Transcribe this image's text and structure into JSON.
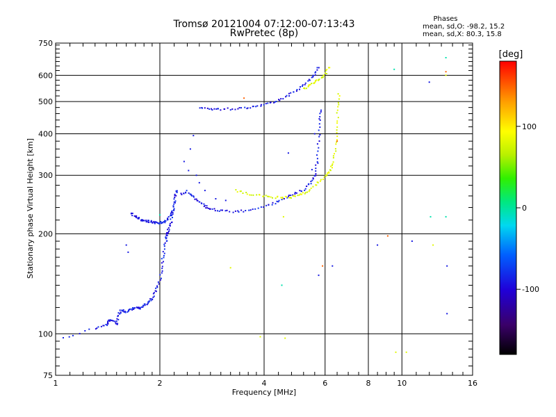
{
  "chart_data": {
    "type": "scatter",
    "title": "Tromsø 20121004 07:12:00-07:13:43",
    "subtitle": "RwPretec (8p)",
    "xlabel": "Frequency [MHz]",
    "ylabel": "Stationary phase Virtual Height [km]",
    "x_scale": "log",
    "y_scale": "log",
    "xlim": [
      1,
      16
    ],
    "ylim": [
      75,
      750
    ],
    "x_ticks": [
      1,
      2,
      4,
      6,
      8,
      10,
      16
    ],
    "x_tick_labels": [
      "1",
      "2",
      "4",
      "6",
      "8",
      "10",
      "16"
    ],
    "y_ticks": [
      75,
      100,
      200,
      300,
      400,
      500,
      600,
      750
    ],
    "y_tick_labels": [
      "75",
      "100",
      "200",
      "300",
      "400",
      "500",
      "600",
      "750"
    ],
    "x_major_gridlines": [
      2,
      4,
      6,
      8,
      10
    ],
    "y_major_gridlines": [
      100,
      200,
      300,
      400,
      500,
      600
    ],
    "x_minor_ticks": [
      1.1,
      1.2,
      1.3,
      1.4,
      1.5,
      1.6,
      1.7,
      1.8,
      1.9,
      2.2,
      2.4,
      2.6,
      2.8,
      3,
      3.2,
      3.4,
      3.6,
      3.8,
      4.4,
      4.8,
      5.2,
      5.6,
      6.5,
      7,
      7.5,
      8.5,
      9,
      9.5,
      11,
      12,
      13,
      14,
      15
    ],
    "y_minor_ticks": [
      80,
      85,
      90,
      95,
      110,
      120,
      130,
      140,
      150,
      160,
      170,
      180,
      190,
      220,
      240,
      260,
      280,
      320,
      340,
      360,
      380,
      420,
      440,
      460,
      480,
      520,
      540,
      560,
      580,
      620,
      640,
      660,
      680,
      700,
      720,
      740
    ],
    "stats": {
      "title": "Phases",
      "line1": "mean, sd,O:  -98.2, 15.2",
      "line2": "mean, sd,X:  80.3, 15.8"
    },
    "colorbar": {
      "label": "[deg]",
      "range": [
        -180,
        180
      ],
      "ticks": [
        100,
        0,
        -100
      ],
      "tick_labels": [
        "100",
        "0",
        "-100"
      ]
    },
    "series": [
      {
        "mode": "O",
        "phase_deg": -98,
        "traces": [
          [
            [
              1.05,
              97
            ],
            [
              1.3,
              104
            ],
            [
              1.4,
              106
            ],
            [
              1.42,
              109
            ],
            [
              1.45,
              110
            ],
            [
              1.5,
              107
            ],
            [
              1.52,
              114
            ],
            [
              1.55,
              118
            ],
            [
              1.6,
              116
            ],
            [
              1.65,
              118
            ],
            [
              1.7,
              120
            ],
            [
              1.75,
              119
            ],
            [
              1.8,
              122
            ],
            [
              1.85,
              124
            ],
            [
              1.9,
              128
            ],
            [
              1.95,
              135
            ],
            [
              2,
              145
            ],
            [
              2.03,
              160
            ],
            [
              2.05,
              175
            ],
            [
              2.08,
              190
            ],
            [
              2.1,
              198
            ],
            [
              2.12,
              205
            ],
            [
              2.15,
              215
            ],
            [
              2.18,
              232
            ],
            [
              2.2,
              248
            ],
            [
              2.22,
              262
            ],
            [
              2.25,
              272
            ]
          ],
          [
            [
              1.65,
              232
            ],
            [
              1.7,
              225
            ],
            [
              1.75,
              221
            ],
            [
              1.8,
              219
            ],
            [
              1.85,
              218
            ],
            [
              1.9,
              217
            ],
            [
              1.95,
              216
            ],
            [
              2,
              216
            ],
            [
              2.05,
              217
            ],
            [
              2.1,
              220
            ],
            [
              2.15,
              228
            ],
            [
              2.2,
              240
            ]
          ],
          [
            [
              2.3,
              262
            ],
            [
              2.4,
              268
            ],
            [
              2.5,
              258
            ],
            [
              2.6,
              250
            ],
            [
              2.7,
              242
            ],
            [
              2.8,
              238
            ],
            [
              3,
              234
            ],
            [
              3.3,
              233
            ],
            [
              3.6,
              235
            ],
            [
              4,
              241
            ],
            [
              4.3,
              248
            ],
            [
              4.6,
              256
            ],
            [
              4.9,
              264
            ],
            [
              5.2,
              272
            ],
            [
              5.45,
              285
            ],
            [
              5.6,
              300
            ],
            [
              5.7,
              330
            ],
            [
              5.75,
              380
            ],
            [
              5.8,
              440
            ],
            [
              5.85,
              480
            ]
          ],
          [
            [
              2.6,
              478
            ],
            [
              2.8,
              475
            ],
            [
              3,
              474
            ],
            [
              3.3,
              476
            ],
            [
              3.6,
              480
            ],
            [
              3.9,
              487
            ],
            [
              4.2,
              497
            ],
            [
              4.5,
              510
            ],
            [
              4.8,
              528
            ],
            [
              5.1,
              550
            ],
            [
              5.4,
              578
            ],
            [
              5.6,
              605
            ],
            [
              5.75,
              640
            ]
          ]
        ],
        "scattered": [
          [
            1.6,
            185
          ],
          [
            1.62,
            176
          ],
          [
            2.35,
            330
          ],
          [
            2.45,
            360
          ],
          [
            2.5,
            395
          ],
          [
            2.42,
            310
          ],
          [
            2.55,
            300
          ],
          [
            2.6,
            285
          ],
          [
            2.7,
            270
          ],
          [
            2.9,
            255
          ],
          [
            3.1,
            252
          ],
          [
            4.7,
            350
          ],
          [
            5.5,
            312
          ],
          [
            5.6,
            400
          ],
          [
            6.3,
            160
          ],
          [
            5.75,
            150
          ],
          [
            8.5,
            185
          ],
          [
            10.7,
            190
          ],
          [
            13.5,
            160
          ],
          [
            13.5,
            115
          ],
          [
            12,
            572
          ]
        ]
      },
      {
        "mode": "X",
        "phase_deg": 80,
        "traces": [
          [
            [
              3.3,
              270
            ],
            [
              3.6,
              264
            ],
            [
              3.9,
              260
            ],
            [
              4.2,
              258
            ],
            [
              4.5,
              257
            ],
            [
              4.8,
              258
            ],
            [
              5.1,
              262
            ],
            [
              5.4,
              270
            ],
            [
              5.7,
              284
            ],
            [
              6,
              298
            ],
            [
              6.2,
              310
            ],
            [
              6.35,
              330
            ],
            [
              6.45,
              370
            ],
            [
              6.5,
              420
            ],
            [
              6.55,
              480
            ],
            [
              6.6,
              540
            ]
          ],
          [
            [
              5.2,
              545
            ],
            [
              5.4,
              558
            ],
            [
              5.6,
              570
            ],
            [
              5.8,
              585
            ],
            [
              6,
              605
            ],
            [
              6.2,
              640
            ]
          ]
        ],
        "scattered": [
          [
            3.9,
            98
          ],
          [
            4.6,
            97
          ],
          [
            3.2,
            158
          ],
          [
            4.55,
            225
          ],
          [
            12.3,
            185
          ],
          [
            13.4,
            600
          ],
          [
            9.6,
            88
          ],
          [
            10.3,
            88
          ]
        ]
      },
      {
        "mode": "other",
        "phase_deg": -5,
        "scattered": [
          [
            4.5,
            140
          ],
          [
            9.5,
            625
          ],
          [
            13.4,
            678
          ],
          [
            12.1,
            225
          ],
          [
            13.4,
            225
          ],
          [
            2.0,
            228
          ]
        ]
      },
      {
        "mode": "other",
        "phase_deg": 150,
        "scattered": [
          [
            3.5,
            512
          ],
          [
            6.5,
            380
          ],
          [
            9.1,
            197
          ],
          [
            5.9,
            160
          ],
          [
            13.4,
            615
          ]
        ]
      }
    ]
  }
}
